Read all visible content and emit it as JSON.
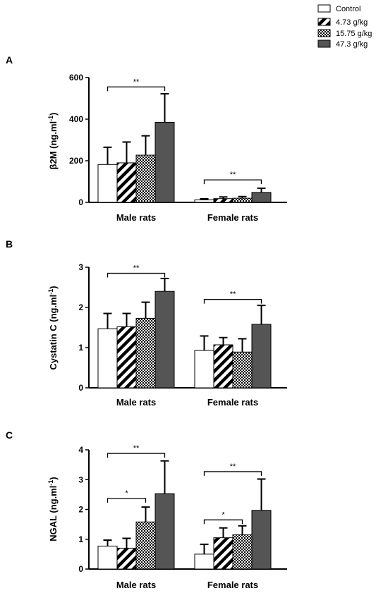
{
  "legend": {
    "items": [
      {
        "label": "Control",
        "pattern": "empty",
        "color": "#ffffff"
      },
      {
        "label": "4.73 g/kg",
        "pattern": "diagonal",
        "color": "#000000"
      },
      {
        "label": "15.75 g/kg",
        "pattern": "checker",
        "color": "#000000"
      },
      {
        "label": "47.3 g/kg",
        "pattern": "solid",
        "color": "#555555"
      }
    ]
  },
  "chart_data": [
    {
      "type": "bar",
      "panel_label": "A",
      "ylabel": "β2M (ng.ml",
      "ylabel_sup": "-1",
      "ylabel_close": ")",
      "ylim": [
        0,
        600
      ],
      "yticks": [
        "0",
        "200",
        "400",
        "600"
      ],
      "categories": [
        "Male rats",
        "Female rats"
      ],
      "series": [
        {
          "name": "Control",
          "values": [
            182,
            12
          ],
          "errors": [
            83,
            5
          ]
        },
        {
          "name": "4.73 g/kg",
          "values": [
            190,
            18
          ],
          "errors": [
            100,
            8
          ]
        },
        {
          "name": "15.75 g/kg",
          "values": [
            227,
            20
          ],
          "errors": [
            93,
            8
          ]
        },
        {
          "name": "47.3 g/kg",
          "values": [
            385,
            48
          ],
          "errors": [
            137,
            20
          ]
        }
      ],
      "annotations": [
        {
          "text": "**",
          "group": 0,
          "from": 0,
          "to": 3,
          "y": 555
        },
        {
          "text": "**",
          "group": 1,
          "from": 0,
          "to": 3,
          "y": 108
        }
      ]
    },
    {
      "type": "bar",
      "panel_label": "B",
      "ylabel": "Cystatin C (ng.ml",
      "ylabel_sup": "-1",
      "ylabel_close": ")",
      "ylim": [
        0,
        3
      ],
      "yticks": [
        "0",
        "1",
        "2",
        "3"
      ],
      "categories": [
        "Male rats",
        "Female rats"
      ],
      "series": [
        {
          "name": "Control",
          "values": [
            1.47,
            0.93
          ],
          "errors": [
            0.38,
            0.36
          ]
        },
        {
          "name": "4.73 g/kg",
          "values": [
            1.52,
            1.07
          ],
          "errors": [
            0.33,
            0.18
          ]
        },
        {
          "name": "15.75 g/kg",
          "values": [
            1.73,
            0.89
          ],
          "errors": [
            0.4,
            0.33
          ]
        },
        {
          "name": "47.3 g/kg",
          "values": [
            2.4,
            1.58
          ],
          "errors": [
            0.32,
            0.47
          ]
        }
      ],
      "annotations": [
        {
          "text": "**",
          "group": 0,
          "from": 0,
          "to": 3,
          "y": 2.85
        },
        {
          "text": "**",
          "group": 1,
          "from": 0,
          "to": 3,
          "y": 2.2
        }
      ]
    },
    {
      "type": "bar",
      "panel_label": "C",
      "ylabel": "NGAL (ng.ml",
      "ylabel_sup": "-1",
      "ylabel_close": ")",
      "ylim": [
        0,
        4
      ],
      "yticks": [
        "0",
        "1",
        "2",
        "3",
        "4"
      ],
      "categories": [
        "Male rats",
        "Female rats"
      ],
      "series": [
        {
          "name": "Control",
          "values": [
            0.77,
            0.5
          ],
          "errors": [
            0.2,
            0.33
          ]
        },
        {
          "name": "4.73 g/kg",
          "values": [
            0.7,
            1.05
          ],
          "errors": [
            0.33,
            0.33
          ]
        },
        {
          "name": "15.75 g/kg",
          "values": [
            1.58,
            1.15
          ],
          "errors": [
            0.5,
            0.3
          ]
        },
        {
          "name": "47.3 g/kg",
          "values": [
            2.53,
            1.97
          ],
          "errors": [
            1.1,
            1.05
          ]
        }
      ],
      "annotations": [
        {
          "text": "**",
          "group": 0,
          "from": 0,
          "to": 3,
          "y": 3.88
        },
        {
          "text": "*",
          "group": 0,
          "from": 0,
          "to": 2,
          "y": 2.37
        },
        {
          "text": "**",
          "group": 1,
          "from": 0,
          "to": 3,
          "y": 3.27
        },
        {
          "text": "*",
          "group": 1,
          "from": 0,
          "to": 2,
          "y": 1.65
        }
      ]
    }
  ]
}
